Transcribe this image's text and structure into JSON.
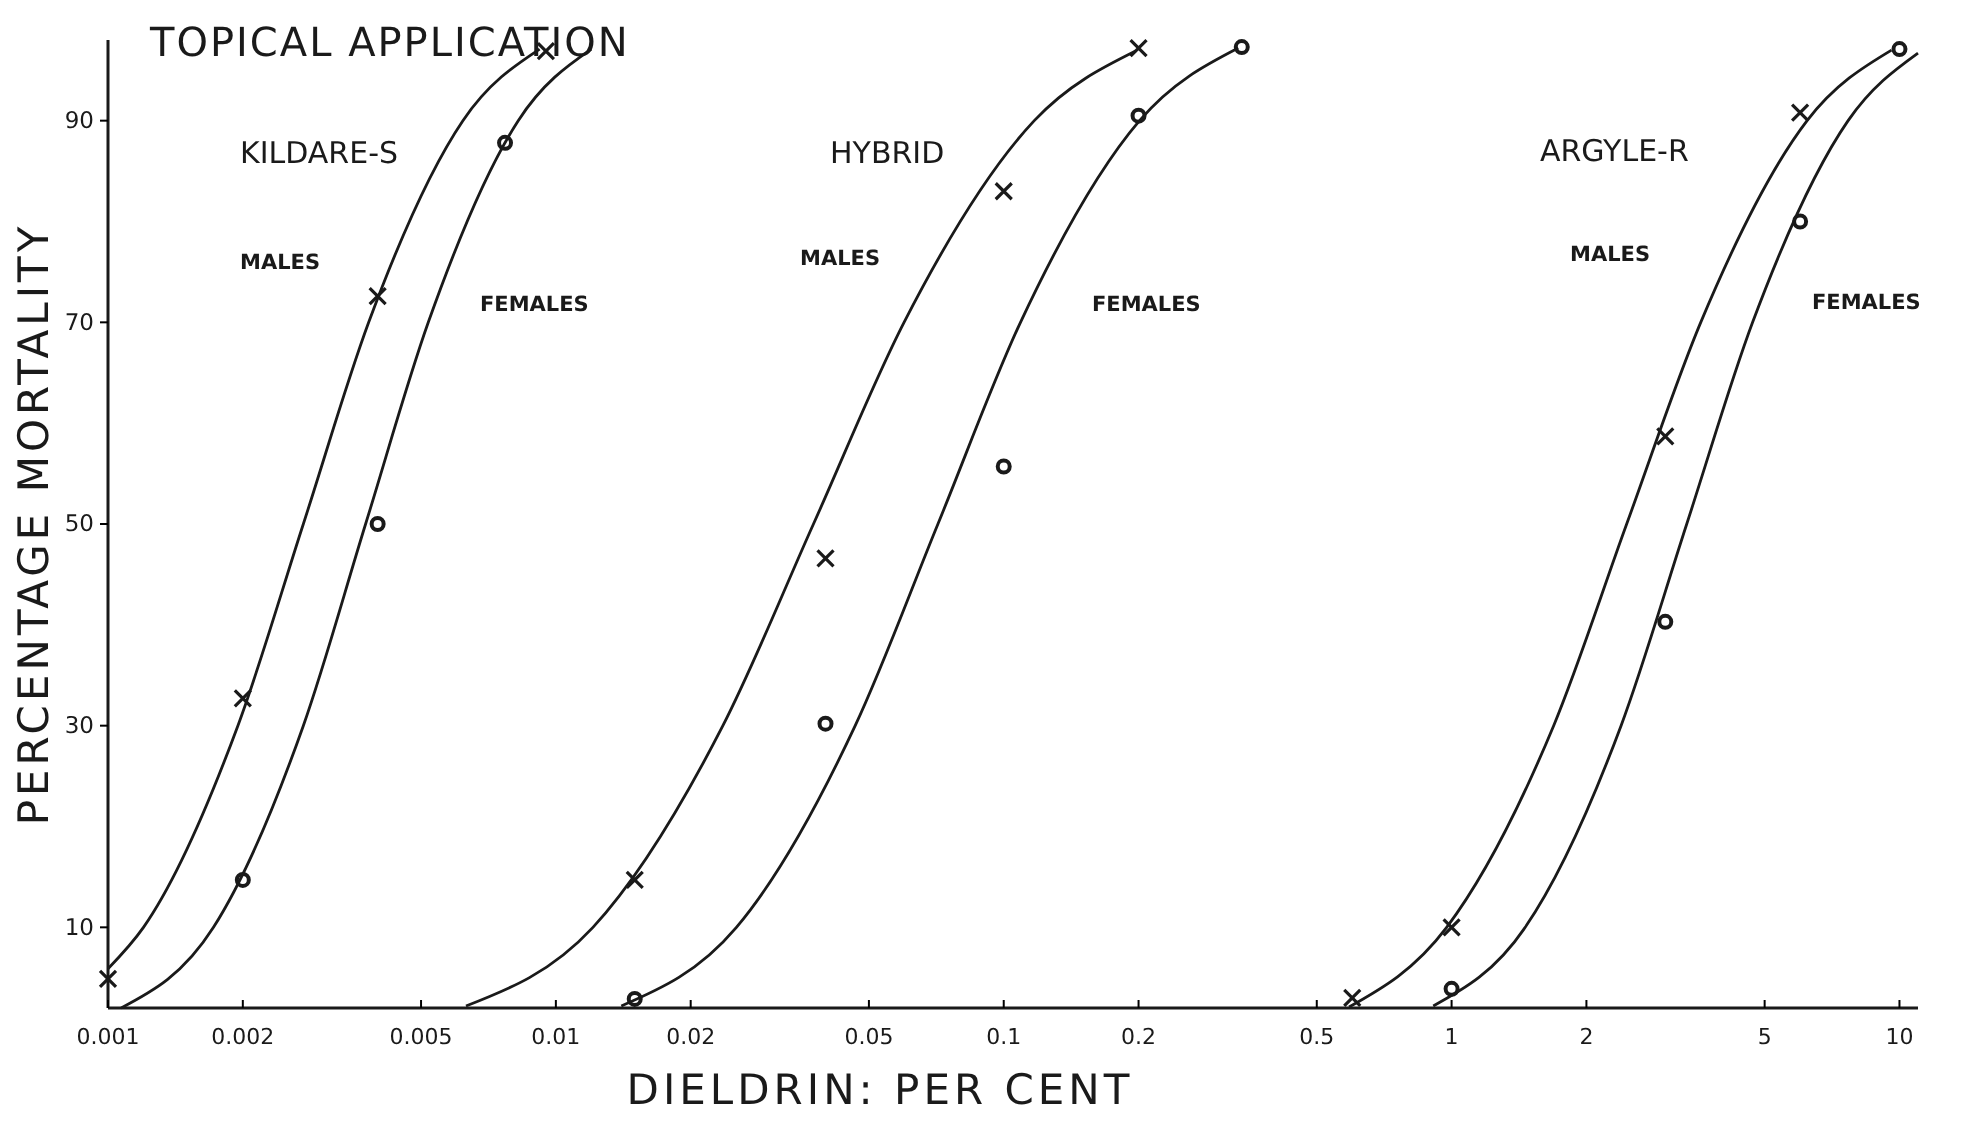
{
  "chart_data": {
    "type": "scatter",
    "title": "TOPICAL APPLICATION",
    "xlabel": "DIELDRIN: PER CENT",
    "ylabel": "PERCENTAGE MORTALITY",
    "log": "x",
    "xlim": [
      0.001,
      11
    ],
    "xticks": [
      0.001,
      0.002,
      0.005,
      0.01,
      0.02,
      0.05,
      0.1,
      0.2,
      0.5,
      1,
      2,
      5,
      10
    ],
    "ylim": [
      2,
      98
    ],
    "yticks": [
      10,
      30,
      50,
      70,
      90
    ],
    "grid": false,
    "line_style": "solid",
    "series": [
      {
        "marker": "cross",
        "color": "#1a1a1a",
        "x": [
          0.001,
          0.002,
          0.004,
          0.0095
        ],
        "values": [
          4.9,
          32.7,
          72.6,
          96.9
        ]
      },
      {
        "marker": "circle",
        "color": "#1a1a1a",
        "x": [
          0.002,
          0.004,
          0.0077
        ],
        "values": [
          14.7,
          50,
          87.8
        ]
      },
      {
        "type": "line",
        "marker": "none",
        "color": "#1a1a1a",
        "x": [
          0.001,
          0.0012,
          0.00195,
          0.00273,
          0.00382,
          0.0062,
          0.0092
        ],
        "values": [
          5.9,
          10,
          30,
          50,
          70,
          90,
          97.1
        ]
      },
      {
        "type": "line",
        "marker": "none",
        "color": "#1a1a1a",
        "x": [
          0.00107,
          0.00172,
          0.00273,
          0.00376,
          0.00519,
          0.00824,
          0.012
        ],
        "values": [
          2,
          10,
          30,
          50,
          70,
          90,
          97.1
        ]
      },
      {
        "marker": "cross",
        "color": "#1a1a1a",
        "x": [
          0.015,
          0.04,
          0.1,
          0.2
        ],
        "values": [
          14.7,
          46.6,
          83,
          97.2
        ]
      },
      {
        "marker": "circle",
        "color": "#1a1a1a",
        "x": [
          0.015,
          0.04,
          0.1,
          0.2,
          0.34
        ],
        "values": [
          2.9,
          30.2,
          55.7,
          90.5,
          97.3
        ]
      },
      {
        "type": "line",
        "marker": "none",
        "color": "#1a1a1a",
        "x": [
          0.0063,
          0.0121,
          0.0236,
          0.0376,
          0.0599,
          0.117,
          0.197
        ],
        "values": [
          2.2,
          10,
          30,
          50,
          70,
          90,
          96.9
        ]
      },
      {
        "type": "line",
        "marker": "none",
        "color": "#1a1a1a",
        "x": [
          0.014,
          0.0253,
          0.0466,
          0.0713,
          0.109,
          0.201,
          0.334
        ],
        "values": [
          2.2,
          10,
          30,
          50,
          70,
          90,
          97.2
        ]
      },
      {
        "marker": "cross",
        "color": "#1a1a1a",
        "x": [
          0.6,
          1,
          3,
          6
        ],
        "values": [
          3,
          10,
          58.7,
          90.8
        ]
      },
      {
        "marker": "circle",
        "color": "#1a1a1a",
        "x": [
          1,
          3,
          6,
          10
        ],
        "values": [
          3.9,
          40.3,
          80,
          97.1
        ]
      },
      {
        "type": "line",
        "marker": "none",
        "color": "#1a1a1a",
        "x": [
          0.59,
          0.975,
          1.69,
          2.46,
          3.6,
          6.22,
          9.6
        ],
        "values": [
          2.1,
          10,
          30,
          50,
          70,
          90,
          97
        ]
      },
      {
        "type": "line",
        "marker": "none",
        "color": "#1a1a1a",
        "x": [
          0.91,
          1.46,
          2.39,
          3.35,
          4.7,
          7.68,
          11
        ],
        "values": [
          2.2,
          10,
          30,
          50,
          70,
          90,
          96.7
        ]
      }
    ],
    "annotations": [
      "KILDARE-S",
      "MALES",
      "FEMALES",
      "HYBRID",
      "MALES",
      "FEMALES",
      "ARGYLE-R",
      "MALES",
      "FEMALES"
    ]
  }
}
